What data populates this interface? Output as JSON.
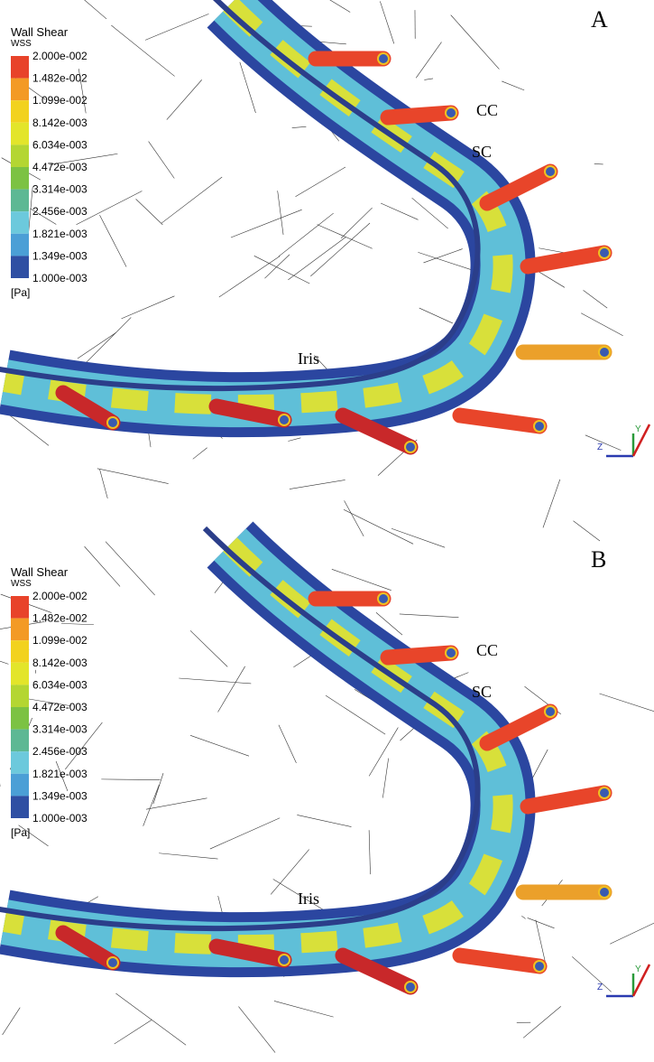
{
  "panels": [
    {
      "label": "A",
      "legend": {
        "title": "Wall Shear",
        "subtitle": "WSS",
        "levels": [
          "2.000e-002",
          "1.482e-002",
          "1.099e-002",
          "8.142e-003",
          "6.034e-003",
          "4.472e-003",
          "3.314e-003",
          "2.456e-003",
          "1.821e-003",
          "1.349e-003",
          "1.000e-003"
        ],
        "unit": "[Pa]"
      },
      "annotations": {
        "cc": "CC",
        "sc": "SC",
        "iris": "Iris"
      },
      "axes": [
        "Z",
        "Y"
      ]
    },
    {
      "label": "B",
      "legend": {
        "title": "Wall Shear",
        "subtitle": "WSS",
        "levels": [
          "2.000e-002",
          "1.482e-002",
          "1.099e-002",
          "8.142e-003",
          "6.034e-003",
          "4.472e-003",
          "3.314e-003",
          "2.456e-003",
          "1.821e-003",
          "1.349e-003",
          "1.000e-003"
        ],
        "unit": "[Pa]"
      },
      "annotations": {
        "cc": "CC",
        "sc": "SC",
        "iris": "Iris"
      },
      "axes": [
        "Z",
        "Y"
      ]
    }
  ]
}
